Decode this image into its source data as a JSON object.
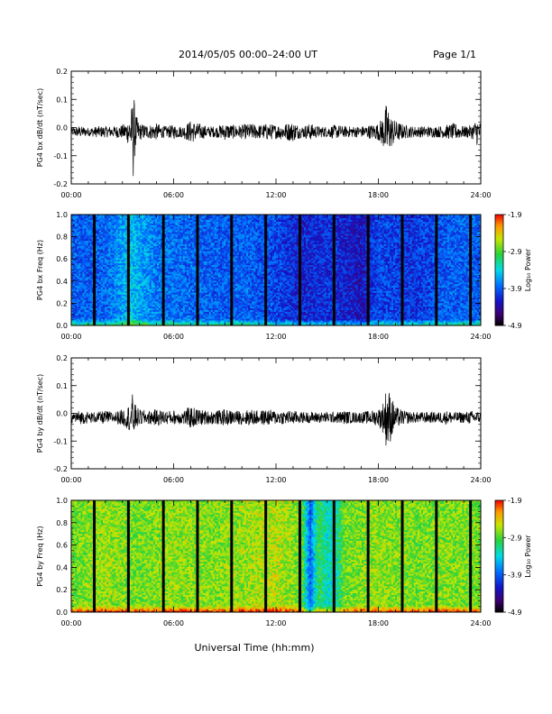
{
  "header": {
    "title": "2014/05/05  00:00–24:00 UT",
    "page": "Page 1/1"
  },
  "xlabel": "Universal Time (hh:mm)",
  "colorbar_label": "Log₁₀ Power",
  "chart_data": [
    {
      "type": "line",
      "ylabel": "PG4 bx dB/dt (nT/sec)",
      "xlim": [
        0,
        24
      ],
      "ylim": [
        -0.2,
        0.2
      ],
      "yticks": [
        -0.2,
        -0.1,
        0.0,
        0.1,
        0.2
      ],
      "ytick_labels": [
        "-0.2",
        "-0.1",
        "0.0",
        "0.1",
        "0.2"
      ],
      "xticks": [
        0,
        6,
        12,
        18,
        24
      ],
      "xtick_labels": [
        "00:00",
        "06:00",
        "12:00",
        "18:00",
        "24:00"
      ],
      "series": [
        {
          "x": [
            0,
            0.5,
            1,
            1.5,
            2,
            2.5,
            3,
            3.3,
            3.5,
            3.6,
            3.65,
            3.7,
            3.8,
            4,
            4.5,
            5,
            5.5,
            6,
            6.5,
            7,
            7.5,
            8,
            8.5,
            9,
            9.5,
            10,
            10.5,
            11,
            11.5,
            12,
            12.5,
            13,
            13.5,
            14,
            14.5,
            15,
            15.5,
            16,
            16.5,
            17,
            17.5,
            18,
            18.3,
            18.5,
            18.7,
            19,
            19.5,
            20,
            20.5,
            21,
            21.5,
            22,
            22.5,
            23,
            23.5,
            23.8,
            24
          ],
          "amp": [
            0.015,
            0.02,
            0.015,
            0.02,
            0.02,
            0.02,
            0.025,
            0.04,
            0.08,
            0.11,
            0.2,
            0.1,
            0.06,
            0.03,
            0.025,
            0.03,
            0.02,
            0.025,
            0.02,
            0.04,
            0.03,
            0.02,
            0.02,
            0.03,
            0.025,
            0.025,
            0.03,
            0.025,
            0.03,
            0.025,
            0.03,
            0.035,
            0.02,
            0.03,
            0.02,
            0.02,
            0.025,
            0.02,
            0.02,
            0.02,
            0.025,
            0.03,
            0.06,
            0.11,
            0.06,
            0.04,
            0.025,
            0.02,
            0.02,
            0.02,
            0.02,
            0.025,
            0.03,
            0.02,
            0.025,
            0.05,
            0.03
          ]
        }
      ]
    },
    {
      "type": "heatmap",
      "ylabel": "PG4 bx Freq (Hz)",
      "xlim": [
        0,
        24
      ],
      "ylim": [
        0,
        1
      ],
      "yticks": [
        0.0,
        0.2,
        0.4,
        0.6,
        0.8,
        1.0
      ],
      "ytick_labels": [
        "0.0",
        "0.2",
        "0.4",
        "0.6",
        "0.8",
        "1.0"
      ],
      "xticks": [
        0,
        6,
        12,
        18,
        24
      ],
      "xtick_labels": [
        "00:00",
        "06:00",
        "12:00",
        "18:00",
        "24:00"
      ],
      "colorbar": {
        "range": [
          -4.9,
          -1.9
        ],
        "ticks": [
          -1.9,
          -2.9,
          -3.9,
          -4.9
        ],
        "tick_labels": [
          "-1.9",
          "-2.9",
          "-3.9",
          "-4.9"
        ]
      },
      "gaps_hours": [
        1.35,
        3.35,
        5.4,
        7.4,
        9.4,
        11.4,
        13.4,
        15.4,
        17.4,
        19.4,
        21.4,
        23.4
      ],
      "background_level_by_hour": {
        "x": [
          0,
          2,
          3.5,
          5,
          8,
          10,
          12,
          13.5,
          15,
          17,
          18,
          20,
          22,
          24
        ],
        "level": [
          -3.9,
          -3.9,
          -3.5,
          -3.8,
          -3.9,
          -3.9,
          -4.0,
          -4.2,
          -4.1,
          -4.3,
          -4.0,
          -4.1,
          -3.9,
          -3.9
        ]
      }
    },
    {
      "type": "line",
      "ylabel": "PG4 by dB/dt (nT/sec)",
      "xlim": [
        0,
        24
      ],
      "ylim": [
        -0.2,
        0.2
      ],
      "yticks": [
        -0.2,
        -0.1,
        0.0,
        0.1,
        0.2
      ],
      "ytick_labels": [
        "-0.2",
        "-0.1",
        "0.0",
        "0.1",
        "0.2"
      ],
      "xticks": [
        0,
        6,
        12,
        18,
        24
      ],
      "xtick_labels": [
        "00:00",
        "06:00",
        "12:00",
        "18:00",
        "24:00"
      ],
      "series": [
        {
          "x": [
            0,
            0.5,
            1,
            1.5,
            2,
            2.5,
            3,
            3.3,
            3.5,
            3.6,
            3.7,
            3.8,
            4,
            4.5,
            5,
            5.5,
            6,
            6.5,
            7,
            7.5,
            8,
            8.5,
            9,
            9.5,
            10,
            10.5,
            11,
            11.5,
            12,
            12.5,
            13,
            13.5,
            14,
            14.5,
            15,
            15.5,
            16,
            16.5,
            17,
            17.5,
            18,
            18.3,
            18.5,
            18.7,
            19,
            19.5,
            20,
            20.5,
            21,
            21.5,
            22,
            22.5,
            23,
            23.5,
            24
          ],
          "amp": [
            0.02,
            0.025,
            0.02,
            0.02,
            0.025,
            0.02,
            0.03,
            0.04,
            0.06,
            0.09,
            0.06,
            0.04,
            0.03,
            0.025,
            0.03,
            0.025,
            0.025,
            0.025,
            0.04,
            0.03,
            0.025,
            0.025,
            0.03,
            0.025,
            0.025,
            0.03,
            0.025,
            0.03,
            0.025,
            0.025,
            0.025,
            0.02,
            0.02,
            0.02,
            0.02,
            0.02,
            0.025,
            0.02,
            0.02,
            0.025,
            0.03,
            0.06,
            0.12,
            0.09,
            0.04,
            0.025,
            0.02,
            0.02,
            0.02,
            0.02,
            0.025,
            0.02,
            0.02,
            0.025,
            0.02
          ]
        }
      ]
    },
    {
      "type": "heatmap",
      "ylabel": "PG4 by Freq (Hz)",
      "xlim": [
        0,
        24
      ],
      "ylim": [
        0,
        1
      ],
      "yticks": [
        0.0,
        0.2,
        0.4,
        0.6,
        0.8,
        1.0
      ],
      "ytick_labels": [
        "0.0",
        "0.2",
        "0.4",
        "0.6",
        "0.8",
        "1.0"
      ],
      "xticks": [
        0,
        6,
        12,
        18,
        24
      ],
      "xtick_labels": [
        "00:00",
        "06:00",
        "12:00",
        "18:00",
        "24:00"
      ],
      "colorbar": {
        "range": [
          -4.9,
          -1.9
        ],
        "ticks": [
          -1.9,
          -2.9,
          -3.9,
          -4.9
        ],
        "tick_labels": [
          "-1.9",
          "-2.9",
          "-3.9",
          "-4.9"
        ]
      },
      "gaps_hours": [
        1.35,
        3.35,
        5.4,
        7.4,
        9.4,
        11.4,
        13.4,
        15.4,
        17.4,
        19.4,
        21.4,
        23.4
      ],
      "background_level_by_hour": {
        "x": [
          0,
          2,
          4,
          6,
          8,
          10,
          12,
          13.5,
          14,
          14.5,
          15,
          15.5,
          16,
          18,
          20,
          22,
          24
        ],
        "level": [
          -2.8,
          -2.7,
          -2.8,
          -2.7,
          -2.75,
          -2.7,
          -2.6,
          -2.8,
          -3.9,
          -3.0,
          -3.3,
          -3.3,
          -2.8,
          -2.7,
          -2.8,
          -2.75,
          -2.8
        ]
      }
    }
  ]
}
